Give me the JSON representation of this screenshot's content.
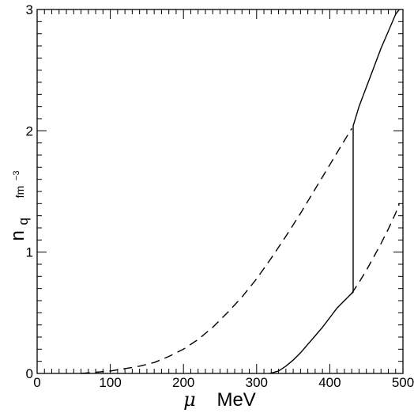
{
  "chart_data": {
    "type": "line",
    "title": "",
    "xlabel": {
      "symbol": "μ",
      "unit": "MeV"
    },
    "ylabel": {
      "symbol": "n",
      "subscript": "q",
      "unit_base": "fm",
      "unit_exp": "−3"
    },
    "xlim": [
      0,
      500
    ],
    "ylim": [
      0,
      3
    ],
    "x_ticks": [
      0,
      100,
      200,
      300,
      400,
      500
    ],
    "y_ticks": [
      0,
      1,
      2,
      3
    ],
    "grid": false,
    "legend": "none",
    "series": [
      {
        "style": "dashed",
        "color": "#000000",
        "x": [
          60,
          80,
          100,
          120,
          140,
          160,
          180,
          200,
          220,
          240,
          260,
          280,
          300,
          320,
          340,
          360,
          380,
          400,
          420,
          430
        ],
        "y": [
          0.0,
          0.01,
          0.02,
          0.04,
          0.06,
          0.09,
          0.14,
          0.2,
          0.28,
          0.38,
          0.5,
          0.63,
          0.78,
          0.95,
          1.13,
          1.32,
          1.52,
          1.72,
          1.92,
          2.02
        ]
      },
      {
        "style": "solid",
        "color": "#000000",
        "x": [
          318,
          330,
          340,
          350,
          360,
          370,
          380,
          390,
          400,
          410,
          420,
          430,
          432,
          432,
          440,
          450,
          460,
          470,
          480,
          490,
          495
        ],
        "y": [
          0.0,
          0.02,
          0.06,
          0.11,
          0.17,
          0.24,
          0.31,
          0.38,
          0.46,
          0.54,
          0.6,
          0.66,
          0.67,
          2.04,
          2.2,
          2.36,
          2.52,
          2.68,
          2.82,
          2.96,
          3.0
        ]
      },
      {
        "style": "dashed",
        "color": "#000000",
        "x": [
          430,
          440,
          450,
          460,
          470,
          480,
          490,
          495
        ],
        "y": [
          0.66,
          0.75,
          0.85,
          0.96,
          1.07,
          1.19,
          1.32,
          1.4
        ]
      }
    ]
  }
}
